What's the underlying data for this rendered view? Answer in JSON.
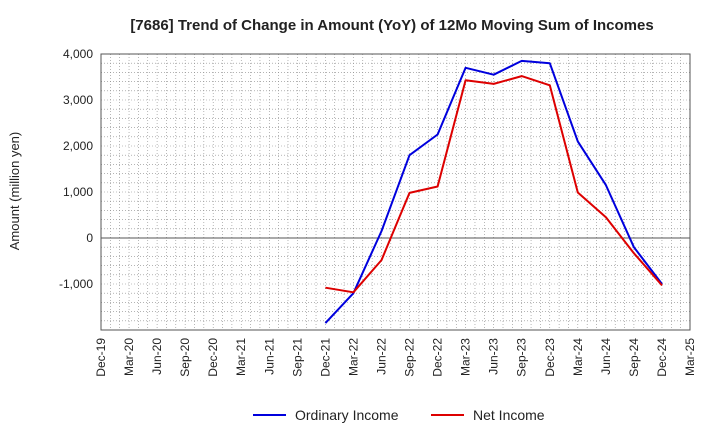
{
  "chart_data": {
    "type": "line",
    "title": "[7686]  Trend of Change in Amount (YoY) of 12Mo Moving Sum of Incomes",
    "ylabel": "Amount (million yen)",
    "xlabel": "",
    "ylim": [
      -2000,
      4000
    ],
    "y_ticks": [
      4000,
      3000,
      2000,
      1000,
      0,
      -1000
    ],
    "y_tick_labels": [
      "4,000",
      "3,000",
      "2,000",
      "1,000",
      "0",
      "-1,000"
    ],
    "x_tick_labels": [
      "Dec-19",
      "Mar-20",
      "Jun-20",
      "Sep-20",
      "Dec-20",
      "Mar-21",
      "Jun-21",
      "Sep-21",
      "Dec-21",
      "Mar-22",
      "Jun-22",
      "Sep-22",
      "Dec-22",
      "Mar-23",
      "Jun-23",
      "Sep-23",
      "Dec-23",
      "Mar-24",
      "Jun-24",
      "Sep-24",
      "Dec-24",
      "Mar-25"
    ],
    "grid": true,
    "legend_position": "bottom",
    "series": [
      {
        "name": "Ordinary Income",
        "color": "#0000dd",
        "x": [
          "Dec-21",
          "Mar-22",
          "Jun-22",
          "Sep-22",
          "Dec-22",
          "Mar-23",
          "Jun-23",
          "Sep-23",
          "Dec-23",
          "Mar-24",
          "Jun-24",
          "Sep-24",
          "Dec-24"
        ],
        "values": [
          -1850,
          -1200,
          150,
          1800,
          2250,
          3700,
          3550,
          3850,
          3800,
          2100,
          1150,
          -200,
          -1000
        ]
      },
      {
        "name": "Net Income",
        "color": "#dd0000",
        "x": [
          "Dec-21",
          "Mar-22",
          "Jun-22",
          "Sep-22",
          "Dec-22",
          "Mar-23",
          "Jun-23",
          "Sep-23",
          "Dec-23",
          "Mar-24",
          "Jun-24",
          "Sep-24",
          "Dec-24"
        ],
        "values": [
          -1080,
          -1180,
          -480,
          980,
          1120,
          3430,
          3350,
          3520,
          3320,
          990,
          450,
          -330,
          -1030
        ]
      }
    ]
  }
}
